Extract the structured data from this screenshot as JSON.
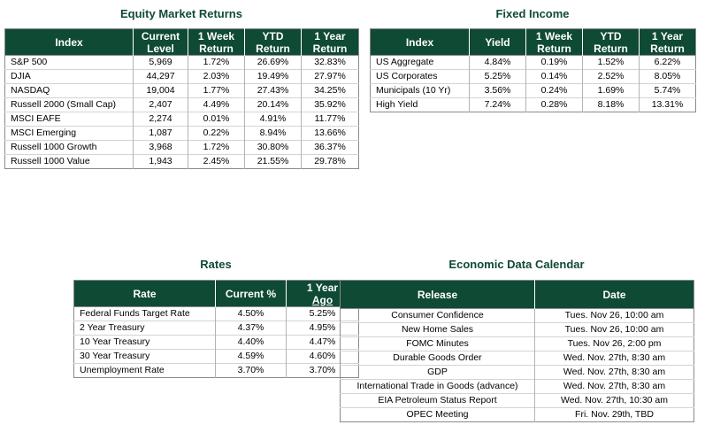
{
  "equity": {
    "title": "Equity Market Returns",
    "headers": [
      "Index",
      "Current Level",
      "1 Week Return",
      "YTD Return",
      "1 Year Return"
    ],
    "rows": [
      [
        "S&P 500",
        "5,969",
        "1.72%",
        "26.69%",
        "32.83%"
      ],
      [
        "DJIA",
        "44,297",
        "2.03%",
        "19.49%",
        "27.97%"
      ],
      [
        "NASDAQ",
        "19,004",
        "1.77%",
        "27.43%",
        "34.25%"
      ],
      [
        "Russell 2000 (Small Cap)",
        "2,407",
        "4.49%",
        "20.14%",
        "35.92%"
      ],
      [
        "MSCI EAFE",
        "2,274",
        "0.01%",
        "4.91%",
        "11.77%"
      ],
      [
        "MSCI Emerging",
        "1,087",
        "0.22%",
        "8.94%",
        "13.66%"
      ],
      [
        "Russell 1000 Growth",
        "3,968",
        "1.72%",
        "30.80%",
        "36.37%"
      ],
      [
        "Russell 1000 Value",
        "1,943",
        "2.45%",
        "21.55%",
        "29.78%"
      ]
    ]
  },
  "fixed_income": {
    "title": "Fixed Income",
    "headers": [
      "Index",
      "Yield",
      "1 Week Return",
      "YTD Return",
      "1 Year Return"
    ],
    "rows": [
      [
        "US Aggregate",
        "4.84%",
        "0.19%",
        "1.52%",
        "6.22%"
      ],
      [
        "US Corporates",
        "5.25%",
        "0.14%",
        "2.52%",
        "8.05%"
      ],
      [
        "Municipals (10 Yr)",
        "3.56%",
        "0.24%",
        "1.69%",
        "5.74%"
      ],
      [
        "High Yield",
        "7.24%",
        "0.28%",
        "8.18%",
        "13.31%"
      ]
    ]
  },
  "rates": {
    "title": "Rates",
    "headers": [
      "Rate",
      "Current %",
      "1 Year",
      "Ago"
    ],
    "rows": [
      [
        "Federal Funds Target Rate",
        "4.50%",
        "5.25%"
      ],
      [
        "2 Year Treasury",
        "4.37%",
        "4.95%"
      ],
      [
        "10 Year Treasury",
        "4.40%",
        "4.47%"
      ],
      [
        "30 Year Treasury",
        "4.59%",
        "4.60%"
      ],
      [
        "Unemployment Rate",
        "3.70%",
        "3.70%"
      ]
    ]
  },
  "calendar": {
    "title": "Economic Data Calendar",
    "headers": [
      "Release",
      "Date"
    ],
    "rows": [
      [
        "Consumer Confidence",
        "Tues. Nov 26, 10:00 am"
      ],
      [
        "New Home Sales",
        "Tues. Nov 26, 10:00 am"
      ],
      [
        "FOMC Minutes",
        "Tues. Nov 26, 2:00 pm"
      ],
      [
        "Durable Goods Order",
        "Wed. Nov. 27th, 8:30 am"
      ],
      [
        "GDP",
        "Wed. Nov. 27th, 8:30 am"
      ],
      [
        "International Trade in Goods (advance)",
        "Wed. Nov. 27th, 8:30 am"
      ],
      [
        "EIA Petroleum Status Report",
        "Wed. Nov. 27th, 10:30 am"
      ],
      [
        "OPEC Meeting",
        "Fri. Nov. 29th, TBD"
      ]
    ]
  }
}
